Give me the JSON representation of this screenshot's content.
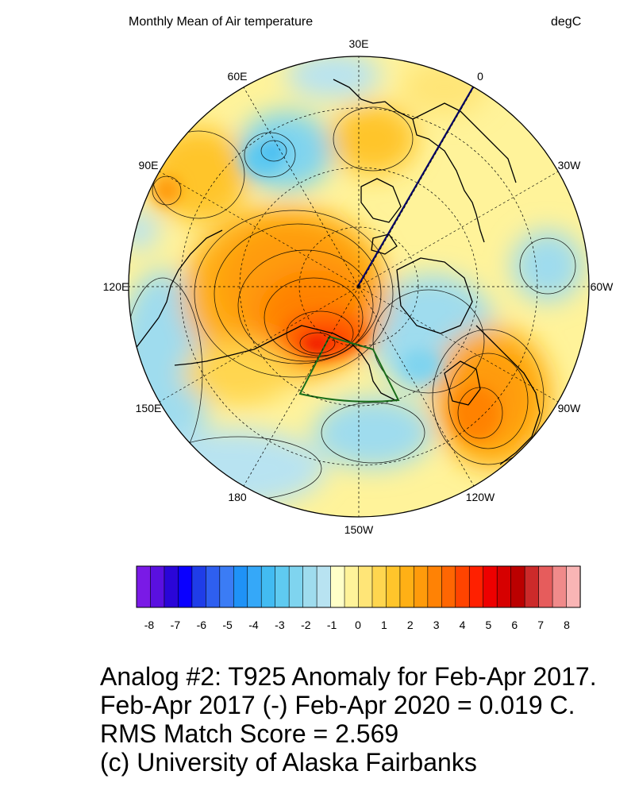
{
  "header": {
    "title": "Monthly Mean of Air temperature",
    "units": "degC"
  },
  "map": {
    "projection": "north-polar-stereographic",
    "longitude_labels": [
      {
        "text": "30E",
        "lon": 30
      },
      {
        "text": "0",
        "lon": 0
      },
      {
        "text": "30W",
        "lon": -30
      },
      {
        "text": "60W",
        "lon": -60
      },
      {
        "text": "90W",
        "lon": -90
      },
      {
        "text": "120W",
        "lon": -120
      },
      {
        "text": "150W",
        "lon": -150
      },
      {
        "text": "180",
        "lon": 180
      },
      {
        "text": "150E",
        "lon": 150
      },
      {
        "text": "120E",
        "lon": 120
      },
      {
        "text": "90E",
        "lon": 90
      },
      {
        "text": "60E",
        "lon": 60
      }
    ],
    "colors": {
      "coastline": "#000000",
      "meridian_line": "#000066",
      "region_outline": "#1a6e1a"
    }
  },
  "colorbar": {
    "colors": [
      "#7a1ae6",
      "#5a10e0",
      "#2a05d8",
      "#0a00ff",
      "#1f3de8",
      "#2e5ff0",
      "#3b7cf5",
      "#1f92f7",
      "#35a8f8",
      "#42bbf2",
      "#5fcaf0",
      "#7fd4ef",
      "#9fdcee",
      "#b8e3f1",
      "#ffffc8",
      "#fff39a",
      "#ffe577",
      "#ffd64f",
      "#ffc52b",
      "#ffb015",
      "#ff9b0b",
      "#ff8205",
      "#ff6602",
      "#ff4400",
      "#ff2000",
      "#ee0000",
      "#d60000",
      "#bb0000",
      "#cc2a2a",
      "#e65c5c",
      "#f08a8a",
      "#f9b5b5"
    ],
    "labels": [
      "-8",
      "-7",
      "-6",
      "-5",
      "-4",
      "-3",
      "-2",
      "-1",
      "0",
      "1",
      "2",
      "3",
      "4",
      "5",
      "6",
      "7",
      "8"
    ]
  },
  "footer": {
    "line1": "Analog #2: T925 Anomaly for Feb-Apr 2017.",
    "line2": "Feb-Apr 2017 (-) Feb-Apr 2020 =  0.019 C.",
    "line3": "RMS Match Score = 2.569",
    "line4": "(c) University of Alaska Fairbanks"
  }
}
